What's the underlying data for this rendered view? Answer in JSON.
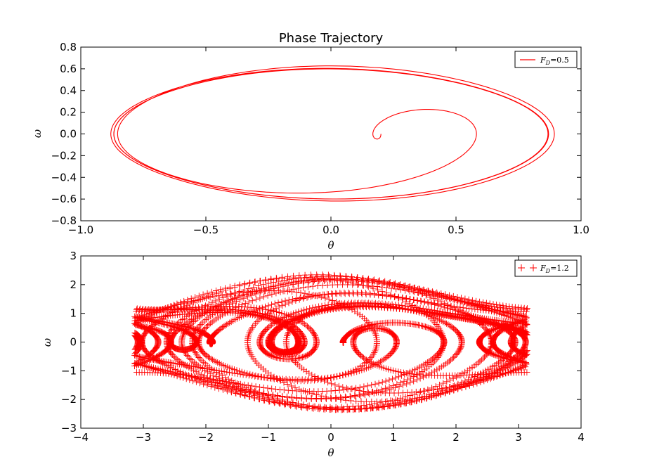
{
  "chart_data": [
    {
      "type": "line",
      "title": "Phase Trajectory",
      "xlabel": "θ",
      "ylabel": "ω",
      "xlim": [
        -1.0,
        1.0
      ],
      "ylim": [
        -0.8,
        0.8
      ],
      "xticks": [
        -1.0,
        -0.5,
        0.0,
        0.5,
        1.0
      ],
      "xtick_labels": [
        "−1.0",
        "−0.5",
        "0.0",
        "0.5",
        "1.0"
      ],
      "yticks": [
        -0.8,
        -0.6,
        -0.4,
        -0.2,
        0.0,
        0.2,
        0.4,
        0.6,
        0.8
      ],
      "ytick_labels": [
        "−0.8",
        "−0.6",
        "−0.4",
        "−0.2",
        "0.0",
        "0.2",
        "0.4",
        "0.6",
        "0.8"
      ],
      "legend_position": "top-right",
      "series": [
        {
          "name": "F_D = 0.5",
          "legend_label": "F_D=0.5",
          "color": "#ff0000",
          "marker": "line",
          "description_points": {
            "start": [
              0.19,
              -0.02
            ],
            "transient_peak": [
              0.39,
              0.23
            ],
            "transient_right": [
              0.58,
              0.0
            ],
            "transient_bottom": [
              -0.12,
              -0.55
            ],
            "steady_amplitude_theta": 0.86,
            "steady_amplitude_omega": 0.61
          }
        }
      ]
    },
    {
      "type": "scatter",
      "xlabel": "θ",
      "ylabel": "ω",
      "xlim": [
        -4,
        4
      ],
      "ylim": [
        -3,
        3
      ],
      "xticks": [
        -4,
        -3,
        -2,
        -1,
        0,
        1,
        2,
        3,
        4
      ],
      "xtick_labels": [
        "−4",
        "−3",
        "−2",
        "−1",
        "0",
        "1",
        "2",
        "3",
        "4"
      ],
      "yticks": [
        -3,
        -2,
        -1,
        0,
        1,
        2,
        3
      ],
      "ytick_labels": [
        "−3",
        "−2",
        "−1",
        "0",
        "1",
        "2",
        "3"
      ],
      "legend_position": "top-right",
      "series": [
        {
          "name": "F_D = 1.2",
          "legend_label": "F_D=1.2",
          "color": "#ff0000",
          "marker": "+",
          "theta_range": [
            -3.14,
            3.14
          ],
          "omega_range": [
            -2.4,
            2.4
          ]
        }
      ]
    }
  ],
  "legend_sub": "D",
  "legend_labels": [
    "F_D=0.5",
    "F_D=1.2"
  ],
  "colors": {
    "series": "#ff0000",
    "axes": "#000000",
    "background": "#ffffff"
  }
}
